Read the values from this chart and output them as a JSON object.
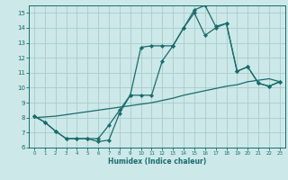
{
  "xlabel": "Humidex (Indice chaleur)",
  "background_color": "#cce8e8",
  "grid_color": "#aacccc",
  "line_color": "#1a6b6b",
  "hours": [
    0,
    1,
    2,
    3,
    4,
    5,
    6,
    7,
    8,
    9,
    10,
    11,
    12,
    13,
    14,
    15,
    16,
    17,
    18,
    19,
    20,
    21,
    22,
    23
  ],
  "line_top": [
    8.1,
    7.7,
    7.1,
    6.6,
    6.6,
    6.6,
    6.6,
    7.5,
    8.5,
    9.5,
    12.7,
    12.8,
    12.8,
    12.8,
    14.0,
    15.0,
    13.5,
    14.0,
    14.3,
    11.1,
    11.4,
    10.3,
    10.1,
    10.4
  ],
  "line_bot": [
    8.1,
    7.7,
    7.1,
    6.6,
    6.6,
    6.6,
    6.4,
    6.5,
    8.3,
    9.5,
    9.5,
    9.5,
    11.8,
    12.8,
    14.0,
    15.2,
    15.5,
    14.1,
    14.3,
    11.1,
    11.4,
    10.3,
    10.1,
    10.4
  ],
  "line_mid": [
    8.0,
    8.05,
    8.1,
    8.2,
    8.3,
    8.4,
    8.5,
    8.6,
    8.7,
    8.8,
    8.9,
    9.0,
    9.15,
    9.3,
    9.5,
    9.65,
    9.8,
    9.95,
    10.1,
    10.2,
    10.4,
    10.5,
    10.6,
    10.4
  ],
  "ylim": [
    6,
    15.5
  ],
  "xlim": [
    -0.5,
    23.5
  ],
  "yticks": [
    6,
    7,
    8,
    9,
    10,
    11,
    12,
    13,
    14,
    15
  ],
  "xticks": [
    0,
    1,
    2,
    3,
    4,
    5,
    6,
    7,
    8,
    9,
    10,
    11,
    12,
    13,
    14,
    15,
    16,
    17,
    18,
    19,
    20,
    21,
    22,
    23
  ]
}
